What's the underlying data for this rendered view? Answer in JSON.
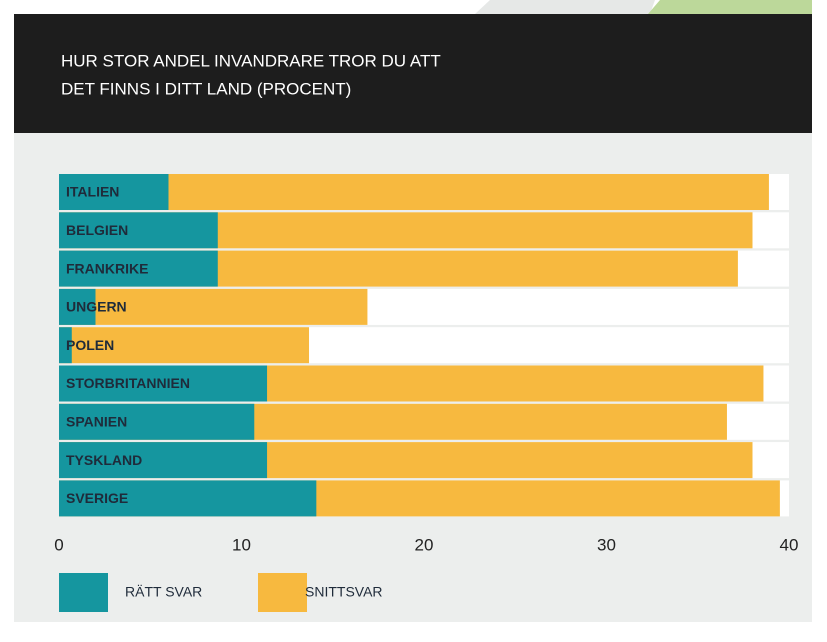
{
  "chart_data": {
    "type": "bar",
    "orientation": "horizontal",
    "title": [
      "HUR STOR ANDEL INVANDRARE TROR DU ATT",
      "DET FINNS I DITT LAND (PROCENT)"
    ],
    "categories": [
      "ITALIEN",
      "BELGIEN",
      "FRANKRIKE",
      "UNGERN",
      "POLEN",
      "STORBRITANNIEN",
      "SPANIEN",
      "TYSKLAND",
      "SVERIGE"
    ],
    "series": [
      {
        "name": "SNITTSVAR",
        "color": "#f7b93f",
        "values": [
          38.9,
          38.0,
          37.2,
          16.9,
          13.7,
          38.6,
          36.6,
          38.0,
          39.5
        ]
      },
      {
        "name": "RÄTT SVAR",
        "color": "#15969f",
        "values": [
          6.0,
          8.7,
          8.7,
          2.0,
          0.7,
          11.4,
          10.7,
          11.4,
          14.1
        ]
      }
    ],
    "xlim": [
      0,
      40
    ],
    "xticks": [
      0,
      10,
      20,
      30,
      40
    ]
  }
}
